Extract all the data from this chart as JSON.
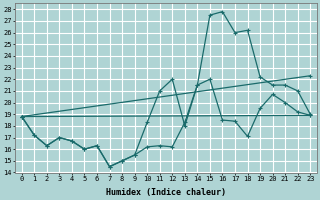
{
  "xlabel": "Humidex (Indice chaleur)",
  "ylabel": "",
  "background_color": "#afd4d4",
  "grid_color": "#ffffff",
  "line_color": "#1a6b6b",
  "xlim": [
    -0.5,
    23.5
  ],
  "ylim": [
    14,
    28.5
  ],
  "yticks": [
    14,
    15,
    16,
    17,
    18,
    19,
    20,
    21,
    22,
    23,
    24,
    25,
    26,
    27,
    28
  ],
  "xticks": [
    0,
    1,
    2,
    3,
    4,
    5,
    6,
    7,
    8,
    9,
    10,
    11,
    12,
    13,
    14,
    15,
    16,
    17,
    18,
    19,
    20,
    21,
    22,
    23
  ],
  "series": [
    {
      "x": [
        0,
        1,
        2,
        3,
        4,
        5,
        6,
        7,
        8,
        9,
        10,
        11,
        12,
        13,
        14,
        15,
        16,
        17,
        18,
        19,
        20,
        21,
        22,
        23
      ],
      "y": [
        18.8,
        17.2,
        16.3,
        17.0,
        16.7,
        16.0,
        16.3,
        14.5,
        15.0,
        15.5,
        16.2,
        16.3,
        16.2,
        18.3,
        21.5,
        22.0,
        18.5,
        18.4,
        17.1,
        19.5,
        20.7,
        20.0,
        19.2,
        18.9
      ]
    },
    {
      "x": [
        0,
        1,
        2,
        3,
        4,
        5,
        6,
        7,
        8,
        9,
        10,
        11,
        12,
        13,
        14,
        15,
        16,
        17,
        18,
        19,
        20,
        21,
        22,
        23
      ],
      "y": [
        18.8,
        17.2,
        16.3,
        17.0,
        16.7,
        16.0,
        16.3,
        14.5,
        15.0,
        15.5,
        18.3,
        21.0,
        22.0,
        18.0,
        21.5,
        27.5,
        27.8,
        26.0,
        26.2,
        22.2,
        21.5,
        21.5,
        21.0,
        19.0
      ]
    },
    {
      "x": [
        0,
        23
      ],
      "y": [
        18.8,
        22.3
      ]
    },
    {
      "x": [
        0,
        23
      ],
      "y": [
        18.8,
        18.9
      ]
    }
  ]
}
